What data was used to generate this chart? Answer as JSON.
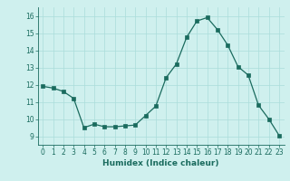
{
  "x": [
    0,
    1,
    2,
    3,
    4,
    5,
    6,
    7,
    8,
    9,
    10,
    11,
    12,
    13,
    14,
    15,
    16,
    17,
    18,
    19,
    20,
    21,
    22,
    23
  ],
  "y": [
    11.9,
    11.8,
    11.6,
    11.2,
    9.5,
    9.7,
    9.55,
    9.55,
    9.6,
    9.65,
    10.2,
    10.75,
    12.4,
    13.2,
    14.75,
    15.7,
    15.9,
    15.2,
    14.3,
    13.05,
    12.55,
    10.8,
    10.0,
    9.05
  ],
  "xlim": [
    -0.5,
    23.5
  ],
  "ylim": [
    8.5,
    16.5
  ],
  "yticks": [
    9,
    10,
    11,
    12,
    13,
    14,
    15,
    16
  ],
  "xticks": [
    0,
    1,
    2,
    3,
    4,
    5,
    6,
    7,
    8,
    9,
    10,
    11,
    12,
    13,
    14,
    15,
    16,
    17,
    18,
    19,
    20,
    21,
    22,
    23
  ],
  "xlabel": "Humidex (Indice chaleur)",
  "line_color": "#1a6b5e",
  "marker_color": "#1a6b5e",
  "bg_color": "#cff0ee",
  "grid_color": "#aaddda",
  "tick_color": "#1a6b5e",
  "label_color": "#1a6b5e",
  "xlabel_fontsize": 6.5,
  "tick_fontsize": 5.5
}
